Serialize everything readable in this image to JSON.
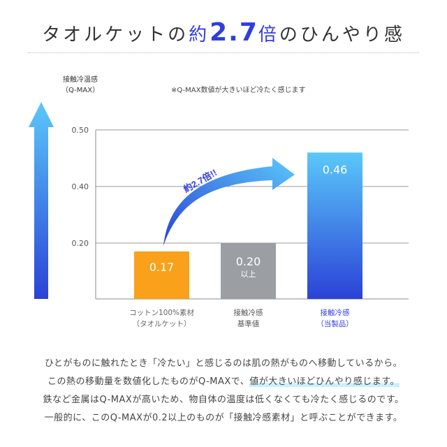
{
  "header": {
    "title_pre": "タオルケットの",
    "title_hl1": "約",
    "title_hl2": "2.7",
    "title_hl3": "倍",
    "title_post": "のひんやり感"
  },
  "colors": {
    "accent": "#2f3ee0",
    "orange": "#f9a11b",
    "gray": "#9b9ea3",
    "blue_top": "#5ac8fa",
    "blue_bottom": "#2b42d6"
  },
  "chart_data": {
    "type": "bar",
    "ylabel_line1": "接触冷温感",
    "ylabel_line2": "（Q-MAX）",
    "note": "※Q-MAX数値が大きいほど冷たく感じます",
    "yticks": [
      0.2,
      0.4,
      0.5
    ],
    "ytick_labels": [
      "0.20",
      "0.40",
      "0.50"
    ],
    "categories": [
      {
        "line1": "コットン100%素材",
        "line2": "（タオルケット）"
      },
      {
        "line1": "接触冷感",
        "line2": "基準値"
      },
      {
        "line1": "接触冷感",
        "line2": "（当製品）"
      }
    ],
    "values": [
      0.17,
      0.2,
      0.46
    ],
    "value_labels": [
      "0.17",
      "0.20",
      "0.46"
    ],
    "value_sublabels": [
      "",
      "以上",
      ""
    ],
    "annotation": "約2.7倍!!"
  },
  "description": {
    "line1": "ひとがものに触れたとき「冷たい」と感じるのは肌の熱がものへ移動しているから。",
    "line2a": "この熱の移動量を数値化したものがQ-MAXで、",
    "line2b": "値が大きいほどひんやり感じます。",
    "line3": "鉄など金属はQ-MAXが高いため、物自体の温度は低くなくても冷たく感じるのです。",
    "line4": "一般的に、このQ-MAXが0.2以上のものが「接触冷感素材」と呼ぶことができます。"
  }
}
